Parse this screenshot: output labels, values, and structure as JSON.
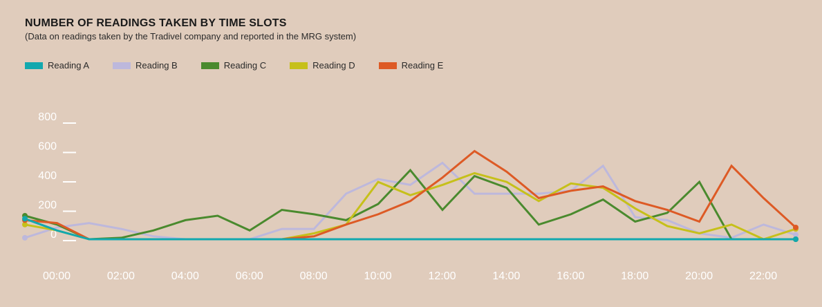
{
  "chart_data": {
    "type": "line",
    "title": "NUMBER OF READINGS TAKEN BY TIME SLOTS",
    "subtitle": "(Data on readings taken by the Tradivel company and reported in the MRG system)",
    "xlabel": "",
    "ylabel": "",
    "x": [
      0,
      1,
      2,
      3,
      4,
      5,
      6,
      7,
      8,
      9,
      10,
      11,
      12,
      13,
      14,
      15,
      16,
      17,
      18,
      19,
      20,
      21,
      22,
      23,
      24
    ],
    "x_ticks": [
      {
        "hour": 0,
        "label": "00:00"
      },
      {
        "hour": 2,
        "label": "02:00"
      },
      {
        "hour": 4,
        "label": "04:00"
      },
      {
        "hour": 6,
        "label": "06:00"
      },
      {
        "hour": 8,
        "label": "08:00"
      },
      {
        "hour": 10,
        "label": "10:00"
      },
      {
        "hour": 12,
        "label": "12:00"
      },
      {
        "hour": 14,
        "label": "14:00"
      },
      {
        "hour": 16,
        "label": "16:00"
      },
      {
        "hour": 18,
        "label": "18:00"
      },
      {
        "hour": 20,
        "label": "20:00"
      },
      {
        "hour": 22,
        "label": "22:00"
      }
    ],
    "y_ticks": [
      {
        "value": 0,
        "label": "0"
      },
      {
        "value": 200,
        "label": "200"
      },
      {
        "value": 400,
        "label": "400"
      },
      {
        "value": 600,
        "label": "600"
      },
      {
        "value": 800,
        "label": "800"
      }
    ],
    "ylim": [
      0,
      800
    ],
    "xlim": [
      0,
      24
    ],
    "grid": false,
    "legend_position": "top-left",
    "series": [
      {
        "name": "Reading B",
        "color": "#bdb8dc",
        "values": [
          10,
          80,
          110,
          70,
          20,
          0,
          0,
          0,
          70,
          70,
          310,
          410,
          370,
          520,
          310,
          310,
          310,
          330,
          500,
          150,
          130,
          40,
          10,
          100,
          30
        ]
      },
      {
        "name": "Reading C",
        "color": "#4a8a2e",
        "values": [
          160,
          100,
          0,
          10,
          60,
          130,
          160,
          60,
          200,
          170,
          130,
          240,
          470,
          200,
          430,
          350,
          100,
          170,
          270,
          120,
          180,
          390,
          0,
          0,
          0
        ]
      },
      {
        "name": "Reading D",
        "color": "#c6c01a",
        "values": [
          100,
          60,
          0,
          0,
          0,
          0,
          0,
          0,
          0,
          40,
          100,
          390,
          300,
          370,
          450,
          390,
          260,
          380,
          350,
          210,
          90,
          40,
          100,
          0,
          70
        ]
      },
      {
        "name": "Reading E",
        "color": "#dd5a25",
        "values": [
          130,
          110,
          0,
          0,
          0,
          0,
          0,
          0,
          0,
          20,
          100,
          170,
          260,
          420,
          600,
          460,
          280,
          330,
          360,
          260,
          200,
          120,
          500,
          280,
          80
        ]
      },
      {
        "name": "Reading A",
        "color": "#12a8ae",
        "values": [
          140,
          60,
          0,
          0,
          0,
          0,
          0,
          0,
          0,
          0,
          0,
          0,
          0,
          0,
          0,
          0,
          0,
          0,
          0,
          0,
          0,
          0,
          0,
          0,
          0
        ]
      }
    ]
  },
  "legend": [
    {
      "label": "Reading A",
      "color": "#12a8ae"
    },
    {
      "label": "Reading B",
      "color": "#bdb8dc"
    },
    {
      "label": "Reading  C",
      "color": "#4a8a2e"
    },
    {
      "label": "Reading  D",
      "color": "#c6c01a"
    },
    {
      "label": "Reading  E",
      "color": "#dd5a25"
    }
  ]
}
